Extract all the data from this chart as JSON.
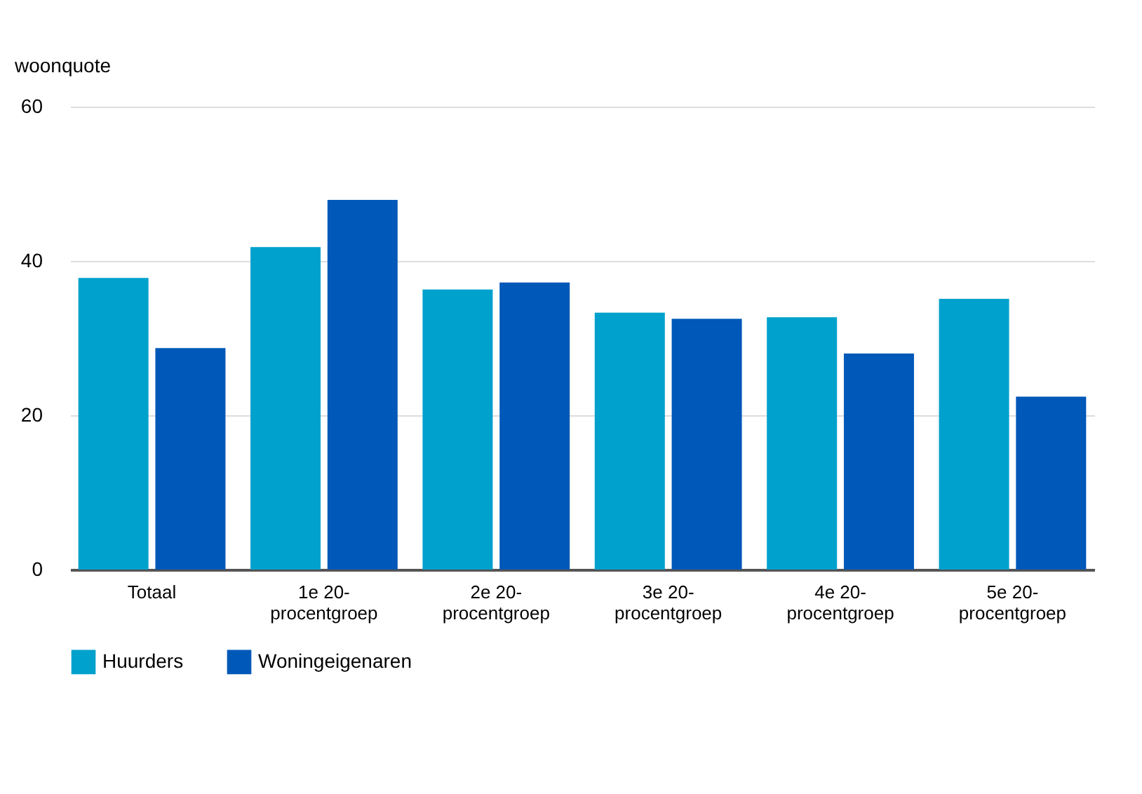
{
  "chart_data": {
    "type": "bar",
    "ylabel": "woonquote",
    "categories": [
      "Totaal",
      "1e 20-procentgroep",
      "2e 20-procentgroep",
      "3e 20-procentgroep",
      "4e 20-procentgroep",
      "5e 20-procentgroep"
    ],
    "series": [
      {
        "name": "Huurders",
        "color": "#00a1cd",
        "values": [
          37.8,
          41.8,
          36.3,
          33.3,
          32.7,
          35.1
        ]
      },
      {
        "name": "Woningeigenaren",
        "color": "#0058b8",
        "values": [
          28.7,
          47.9,
          37.2,
          32.5,
          28.0,
          22.4
        ]
      }
    ],
    "ylim": [
      0,
      60
    ],
    "yticks": [
      0,
      20,
      40,
      60
    ],
    "grid": "y",
    "legend": "bottom"
  }
}
